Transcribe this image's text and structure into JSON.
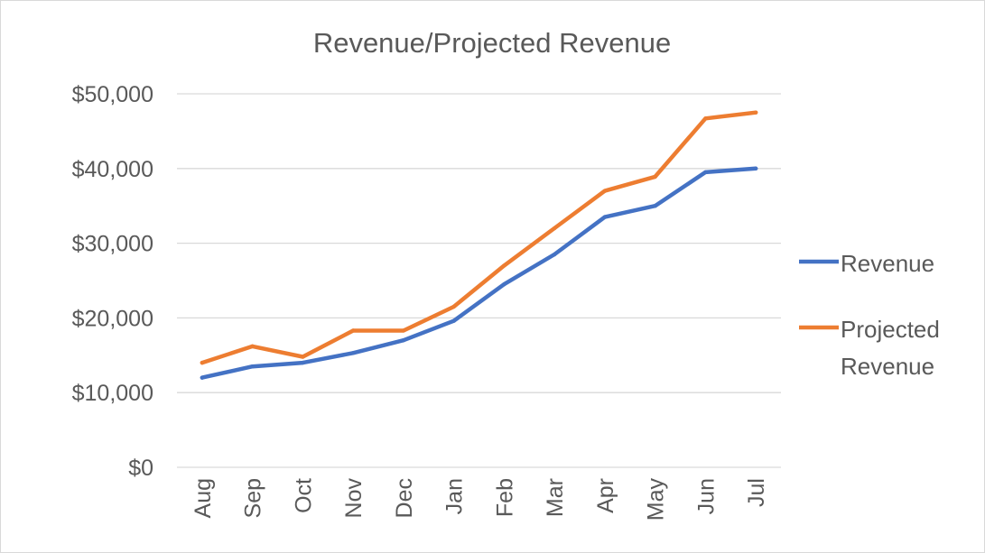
{
  "chart_data": {
    "type": "line",
    "title": "Revenue/Projected Revenue",
    "categories": [
      "Aug",
      "Sep",
      "Oct",
      "Nov",
      "Dec",
      "Jan",
      "Feb",
      "Mar",
      "Apr",
      "May",
      "Jun",
      "Jul"
    ],
    "series": [
      {
        "name": "Revenue",
        "color": "#4472c4",
        "values": [
          12000,
          13500,
          14000,
          15300,
          17000,
          19600,
          24500,
          28500,
          33500,
          35000,
          39500,
          40000
        ]
      },
      {
        "name": "Projected Revenue",
        "color": "#ed7d31",
        "values": [
          14000,
          16200,
          14800,
          18300,
          18300,
          21500,
          27000,
          32000,
          37000,
          38900,
          46700,
          47500
        ]
      }
    ],
    "ylim": [
      0,
      50000
    ],
    "yticks": [
      0,
      10000,
      20000,
      30000,
      40000,
      50000
    ],
    "ytick_labels": [
      "$0",
      "$10,000",
      "$20,000",
      "$30,000",
      "$40,000",
      "$50,000"
    ],
    "grid": true,
    "legend_position": "right"
  }
}
